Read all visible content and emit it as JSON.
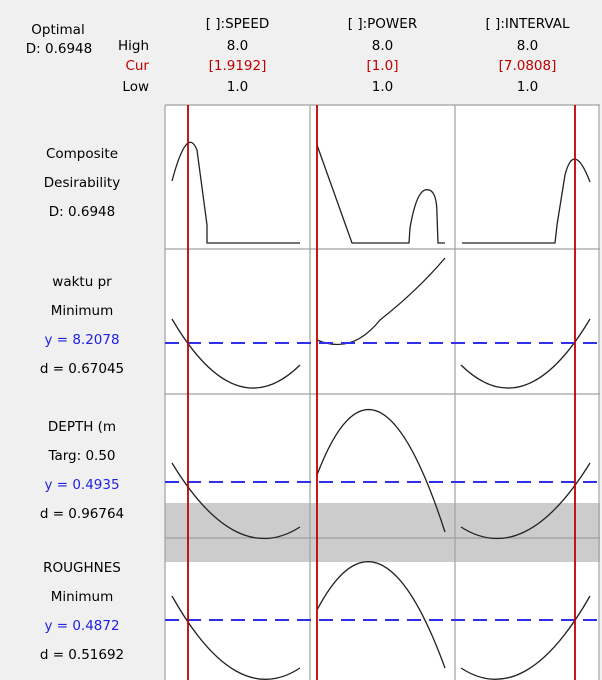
{
  "header": {
    "optimal": "Optimal",
    "d": "D: 0.6948",
    "high_label": "High",
    "cur_label": "Cur",
    "low_label": "Low"
  },
  "factors": [
    {
      "name": "[ ]:SPEED",
      "high": "8.0",
      "cur": "[1.9192]",
      "low": "1.0",
      "cur_value": 1.9192
    },
    {
      "name": "[ ]:POWER",
      "high": "8.0",
      "cur": "[1.0]",
      "low": "1.0",
      "cur_value": 1.0
    },
    {
      "name": "[ ]:INTERVAL",
      "high": "8.0",
      "cur": "[7.0808]",
      "low": "1.0",
      "cur_value": 7.0808
    }
  ],
  "rows": [
    {
      "line1": "Composite",
      "line2": "Desirability",
      "line3": "D: 0.6948",
      "line4": ""
    },
    {
      "line1": "waktu pr",
      "line2": "Minimum",
      "line3": "y = 8.2078",
      "line4": "d = 0.67045"
    },
    {
      "line1": "DEPTH (m",
      "line2": "Targ: 0.50",
      "line3": "y = 0.4935",
      "line4": "d = 0.96764"
    },
    {
      "line1": "ROUGHNES",
      "line2": "Minimum",
      "line3": "y = 0.4872",
      "line4": "d = 0.51692"
    }
  ],
  "colors": {
    "current_line": "#c00000",
    "response_line": "#1f1fe6",
    "band": "#cccccc",
    "grid": "#a0a0a0"
  },
  "chart_data": {
    "type": "line",
    "title": "Optimal D: 0.6948",
    "factor_range": [
      1.0,
      8.0
    ],
    "composite_desirability": 0.6948,
    "current_settings": {
      "[ ]:SPEED": 1.9192,
      "[ ]:POWER": 1.0,
      "[ ]:INTERVAL": 7.0808
    },
    "responses": [
      {
        "name": "Composite Desirability",
        "D": 0.6948
      },
      {
        "name": "waktu pr",
        "goal": "Minimum",
        "y": 8.2078,
        "d": 0.67045
      },
      {
        "name": "DEPTH (m",
        "goal": "Target",
        "target": 0.5,
        "y": 0.4935,
        "d": 0.96764
      },
      {
        "name": "ROUGHNES",
        "goal": "Minimum",
        "y": 0.4872,
        "d": 0.51692
      }
    ],
    "band_depth": true
  }
}
